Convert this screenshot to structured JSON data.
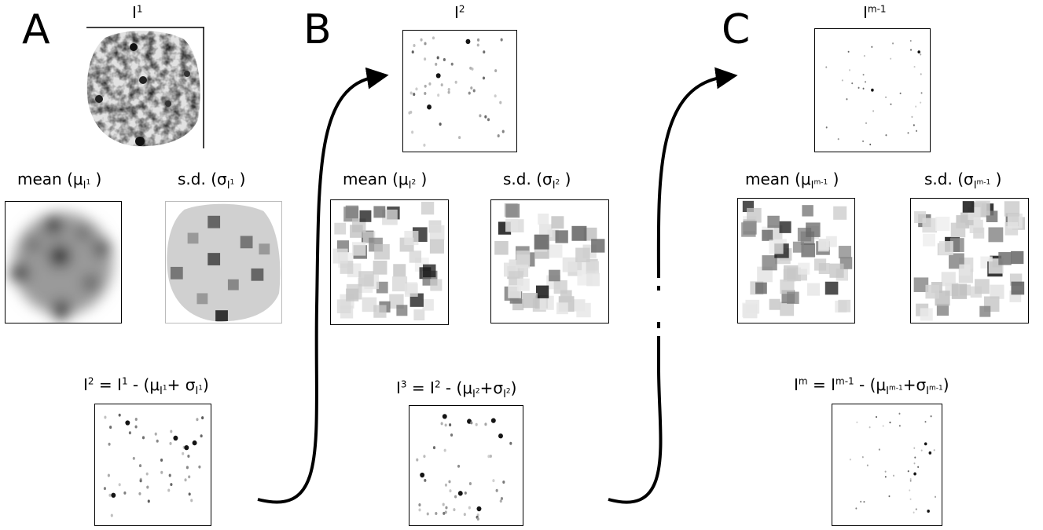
{
  "panels": [
    {
      "letter": "A",
      "input_label": {
        "base": "I",
        "sup": "1"
      },
      "mean_label": {
        "text": "mean (",
        "mu": "μ",
        "sub": "I",
        "subsup": "1",
        "close": " )"
      },
      "sd_label": {
        "text": "s.d. (",
        "sigma": "σ",
        "sub": "I",
        "subsup": "1",
        "close": " )"
      },
      "equation": {
        "lhs": "I",
        "lhs_sup": "2",
        "eq": " = ",
        "rhs": "I",
        "rhs_sup": "1",
        "minus": " - (",
        "mu": "μ",
        "mu_sub": "I",
        "mu_subsup": "1",
        "plus": "+ ",
        "sigma": "σ",
        "sigma_sub": "I",
        "sigma_subsup": "1",
        "close": ")"
      }
    },
    {
      "letter": "B",
      "input_label": {
        "base": "I",
        "sup": "2"
      },
      "mean_label": {
        "text": "mean (",
        "mu": "μ",
        "sub": "I",
        "subsup": "2",
        "close": " )"
      },
      "sd_label": {
        "text": "s.d. (",
        "sigma": "σ",
        "sub": "I",
        "subsup": "2",
        "close": " )"
      },
      "equation": {
        "lhs": "I",
        "lhs_sup": "3",
        "eq": " = ",
        "rhs": "I",
        "rhs_sup": "2",
        "minus": " - (",
        "mu": "μ",
        "mu_sub": "I",
        "mu_subsup": "2",
        "plus": "+",
        "sigma": "σ",
        "sigma_sub": "I",
        "sigma_subsup": "2",
        "close": ")"
      }
    },
    {
      "letter": "C",
      "input_label": {
        "base": "I",
        "sup": "m-1"
      },
      "mean_label": {
        "text": "mean (",
        "mu": "μ",
        "sub": "I",
        "subsup": "m-1",
        "close": " )"
      },
      "sd_label": {
        "text": "s.d. (",
        "sigma": "σ",
        "sub": "I",
        "subsup": "m-1",
        "close": " )"
      },
      "equation": {
        "lhs": "I",
        "lhs_sup": "m",
        "eq": " = ",
        "rhs": "I",
        "rhs_sup": "m-1",
        "minus": " - (",
        "mu": "μ",
        "mu_sub": "I",
        "mu_subsup": "m-1",
        "plus": "+",
        "sigma": "σ",
        "sigma_sub": "I",
        "sigma_subsup": "m-1",
        "close": ")"
      }
    }
  ]
}
